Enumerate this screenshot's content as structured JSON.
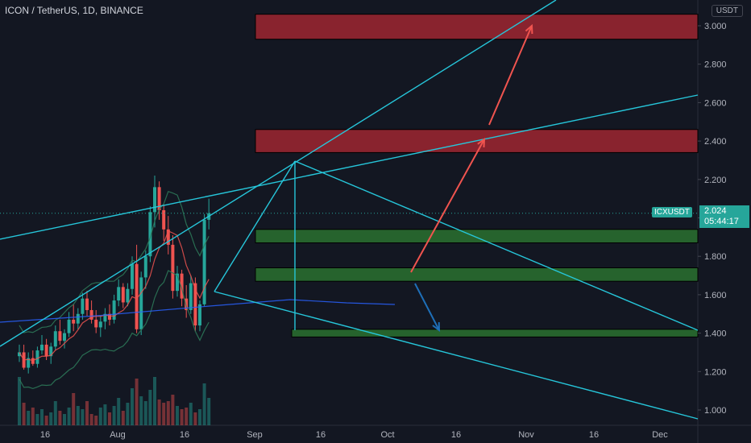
{
  "header": {
    "title": "ICON / TetherUS, 1D, BINANCE",
    "currency_badge": "USDT"
  },
  "price_tag": {
    "symbol": "ICXUSDT",
    "price": "2.024",
    "countdown": "05:44:17"
  },
  "colors": {
    "up": "#26a69a",
    "down": "#ef5350",
    "line": "#26c6da",
    "supply_zone": "#b22833",
    "demand_zone": "#2e7d32",
    "arrow_up": "#f0544f",
    "arrow_down": "#1e6fb8"
  },
  "chart_data": {
    "type": "candlestick",
    "title": "ICON / TetherUS, 1D, BINANCE",
    "ylim": [
      0.92,
      3.15
    ],
    "y_ticks": [
      "1.000",
      "1.200",
      "1.400",
      "1.600",
      "1.800",
      "2.000",
      "2.200",
      "2.400",
      "2.600",
      "2.800",
      "3.000"
    ],
    "x_ticks": [
      "16",
      "Aug",
      "16",
      "Sep",
      "16",
      "Oct",
      "16",
      "Nov",
      "16",
      "Dec"
    ],
    "last_price": 2.024,
    "candles_ohlc_approx": [
      [
        1.28,
        1.34,
        1.25,
        1.3
      ],
      [
        1.3,
        1.34,
        1.21,
        1.22
      ],
      [
        1.22,
        1.3,
        1.19,
        1.27
      ],
      [
        1.27,
        1.31,
        1.23,
        1.24
      ],
      [
        1.24,
        1.33,
        1.22,
        1.31
      ],
      [
        1.31,
        1.39,
        1.29,
        1.34
      ],
      [
        1.34,
        1.37,
        1.26,
        1.28
      ],
      [
        1.28,
        1.35,
        1.24,
        1.33
      ],
      [
        1.33,
        1.44,
        1.31,
        1.41
      ],
      [
        1.41,
        1.47,
        1.34,
        1.36
      ],
      [
        1.36,
        1.42,
        1.32,
        1.4
      ],
      [
        1.4,
        1.51,
        1.38,
        1.47
      ],
      [
        1.47,
        1.55,
        1.41,
        1.45
      ],
      [
        1.45,
        1.53,
        1.42,
        1.5
      ],
      [
        1.5,
        1.61,
        1.47,
        1.58
      ],
      [
        1.58,
        1.62,
        1.49,
        1.52
      ],
      [
        1.52,
        1.57,
        1.45,
        1.47
      ],
      [
        1.47,
        1.52,
        1.4,
        1.43
      ],
      [
        1.43,
        1.49,
        1.38,
        1.46
      ],
      [
        1.46,
        1.53,
        1.42,
        1.5
      ],
      [
        1.5,
        1.55,
        1.44,
        1.47
      ],
      [
        1.47,
        1.6,
        1.45,
        1.57
      ],
      [
        1.57,
        1.68,
        1.54,
        1.64
      ],
      [
        1.64,
        1.66,
        1.53,
        1.56
      ],
      [
        1.56,
        1.66,
        1.54,
        1.63
      ],
      [
        1.63,
        1.8,
        1.6,
        1.76
      ],
      [
        1.76,
        1.86,
        1.4,
        1.42
      ],
      [
        1.42,
        1.72,
        1.39,
        1.69
      ],
      [
        1.69,
        1.83,
        1.63,
        1.8
      ],
      [
        1.8,
        2.06,
        1.77,
        2.03
      ],
      [
        2.03,
        2.22,
        1.95,
        2.16
      ],
      [
        2.16,
        2.19,
        1.99,
        2.04
      ],
      [
        2.04,
        2.07,
        1.88,
        1.94
      ],
      [
        1.94,
        2.01,
        1.81,
        1.86
      ],
      [
        1.86,
        1.91,
        1.58,
        1.62
      ],
      [
        1.62,
        1.75,
        1.59,
        1.71
      ],
      [
        1.71,
        1.73,
        1.54,
        1.58
      ],
      [
        1.58,
        1.65,
        1.48,
        1.52
      ],
      [
        1.52,
        1.7,
        1.5,
        1.66
      ],
      [
        1.66,
        1.69,
        1.41,
        1.44
      ],
      [
        1.44,
        1.57,
        1.41,
        1.55
      ],
      [
        1.55,
        2.02,
        1.54,
        1.99
      ],
      [
        1.99,
        2.1,
        1.94,
        2.024
      ]
    ],
    "annotations": {
      "supply_zones": [
        [
          2.93,
          3.06
        ],
        [
          2.34,
          2.46
        ]
      ],
      "demand_zones": [
        [
          1.87,
          1.94
        ],
        [
          1.67,
          1.74
        ],
        [
          1.38,
          1.42
        ]
      ],
      "arrows": [
        "up",
        "up",
        "down"
      ]
    }
  }
}
